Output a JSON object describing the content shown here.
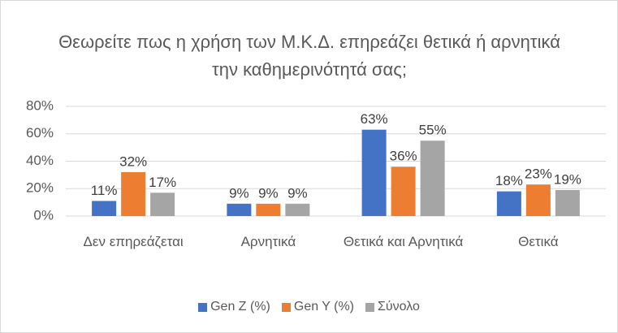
{
  "chart_data": {
    "type": "bar",
    "title": "Θεωρείτε πως η χρήση των Μ.Κ.Δ. επηρεάζει θετικά ή αρνητικά την καθημερινότητά σας;",
    "categories": [
      "Δεν επηρεάζεται",
      "Αρνητικά",
      "Θετικά και Αρνητικά",
      "Θετικά"
    ],
    "series": [
      {
        "name": "Gen Z (%)",
        "color": "#4472c4",
        "values": [
          11,
          9,
          63,
          18
        ],
        "value_labels": [
          "11%",
          "9%",
          "63%",
          "18%"
        ]
      },
      {
        "name": "Gen Y (%)",
        "color": "#ed7d31",
        "values": [
          32,
          9,
          36,
          23
        ],
        "value_labels": [
          "32%",
          "9%",
          "36%",
          "23%"
        ]
      },
      {
        "name": "Σύνολο",
        "color": "#a5a5a5",
        "values": [
          17,
          9,
          55,
          19
        ],
        "value_labels": [
          "17%",
          "9%",
          "55%",
          "19%"
        ]
      }
    ],
    "ylim": [
      0,
      80
    ],
    "yticks": [
      {
        "value": 0,
        "label": "0%"
      },
      {
        "value": 20,
        "label": "20%"
      },
      {
        "value": 40,
        "label": "40%"
      },
      {
        "value": 60,
        "label": "60%"
      },
      {
        "value": 80,
        "label": "80%"
      }
    ],
    "grid": true,
    "legend": "bottom"
  }
}
